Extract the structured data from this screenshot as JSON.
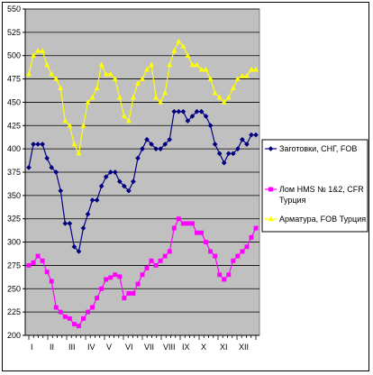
{
  "chart_data": {
    "type": "line",
    "title": "",
    "xlabel": "",
    "ylabel": "",
    "ylim": [
      200,
      550
    ],
    "yticks": [
      200,
      225,
      250,
      275,
      300,
      325,
      350,
      375,
      400,
      425,
      450,
      475,
      500,
      525,
      550
    ],
    "xlim": [
      0,
      47
    ],
    "month_labels": [
      "I",
      "II",
      "III",
      "IV",
      "V",
      "VI",
      "VII",
      "VIII",
      "IX",
      "X",
      "XI",
      "XII"
    ],
    "grid": "horizontal",
    "plot_background": "#c0c0c0",
    "legend_placement": "right",
    "series": [
      {
        "name": "Заготовки, СНГ, FOB",
        "color": "#000080",
        "marker": "diamond",
        "values": [
          380,
          405,
          405,
          405,
          390,
          380,
          375,
          355,
          320,
          320,
          295,
          290,
          315,
          330,
          345,
          345,
          360,
          370,
          375,
          375,
          365,
          360,
          355,
          365,
          390,
          400,
          410,
          405,
          400,
          400,
          405,
          410,
          440,
          440,
          440,
          430,
          435,
          440,
          440,
          435,
          425,
          405,
          395,
          385,
          395,
          395,
          400,
          410,
          405,
          415,
          415
        ]
      },
      {
        "name": "Лом HMS № 1&2, CFR Турция",
        "color": "#ff00ff",
        "marker": "square",
        "values": [
          275,
          278,
          285,
          280,
          268,
          258,
          230,
          225,
          220,
          218,
          212,
          210,
          218,
          225,
          230,
          240,
          250,
          260,
          262,
          265,
          263,
          240,
          245,
          245,
          255,
          265,
          272,
          280,
          275,
          280,
          285,
          290,
          315,
          325,
          320,
          320,
          320,
          310,
          310,
          300,
          290,
          285,
          265,
          260,
          265,
          280,
          285,
          290,
          295,
          305,
          315
        ]
      },
      {
        "name": "Арматура, FOB Турция",
        "color": "#ffff00",
        "marker": "triangle",
        "values": [
          480,
          500,
          505,
          505,
          490,
          480,
          475,
          465,
          430,
          425,
          405,
          395,
          425,
          450,
          455,
          465,
          490,
          480,
          480,
          475,
          455,
          435,
          430,
          455,
          470,
          475,
          485,
          490,
          455,
          450,
          460,
          490,
          505,
          515,
          510,
          500,
          490,
          490,
          485,
          485,
          475,
          460,
          455,
          450,
          455,
          465,
          475,
          478,
          478,
          485,
          485
        ]
      }
    ]
  }
}
